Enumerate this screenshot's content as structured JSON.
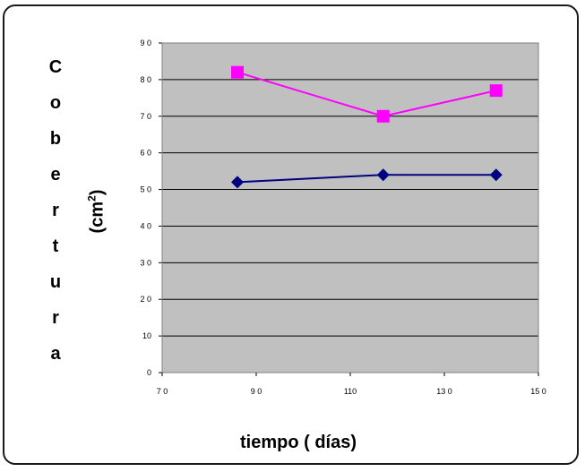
{
  "chart_data": {
    "type": "line",
    "ylabel_letters": [
      "C",
      "o",
      "b",
      "e",
      "r",
      "t",
      "u",
      "r",
      "a"
    ],
    "ylabel_units": "(cm",
    "ylabel_units_sup": "2",
    "ylabel_units_close": ")",
    "xlabel": "tiempo ( días)",
    "xlim": [
      70,
      150
    ],
    "ylim": [
      0,
      90
    ],
    "x_ticks": [
      {
        "value": 70,
        "label": "7 0"
      },
      {
        "value": 90,
        "label": "9 0"
      },
      {
        "value": 110,
        "label": "110"
      },
      {
        "value": 130,
        "label": "13 0"
      },
      {
        "value": 150,
        "label": "15 0"
      }
    ],
    "y_ticks": [
      {
        "value": 0,
        "label": "0"
      },
      {
        "value": 10,
        "label": "10"
      },
      {
        "value": 20,
        "label": "2 0"
      },
      {
        "value": 30,
        "label": "3 0"
      },
      {
        "value": 40,
        "label": "4 0"
      },
      {
        "value": 50,
        "label": "5 0"
      },
      {
        "value": 60,
        "label": "6 0"
      },
      {
        "value": 70,
        "label": "7 0"
      },
      {
        "value": 80,
        "label": "8 0"
      },
      {
        "value": 90,
        "label": "9 0"
      }
    ],
    "grid": "horizontal",
    "plot_background": "#c0c0c0",
    "series": [
      {
        "color": "#ff00ff",
        "marker": "square",
        "x": [
          86,
          117,
          141
        ],
        "y": [
          82,
          70,
          77
        ]
      },
      {
        "color": "#000080",
        "marker": "diamond",
        "x": [
          86,
          117,
          141
        ],
        "y": [
          52,
          54,
          54
        ]
      }
    ]
  }
}
